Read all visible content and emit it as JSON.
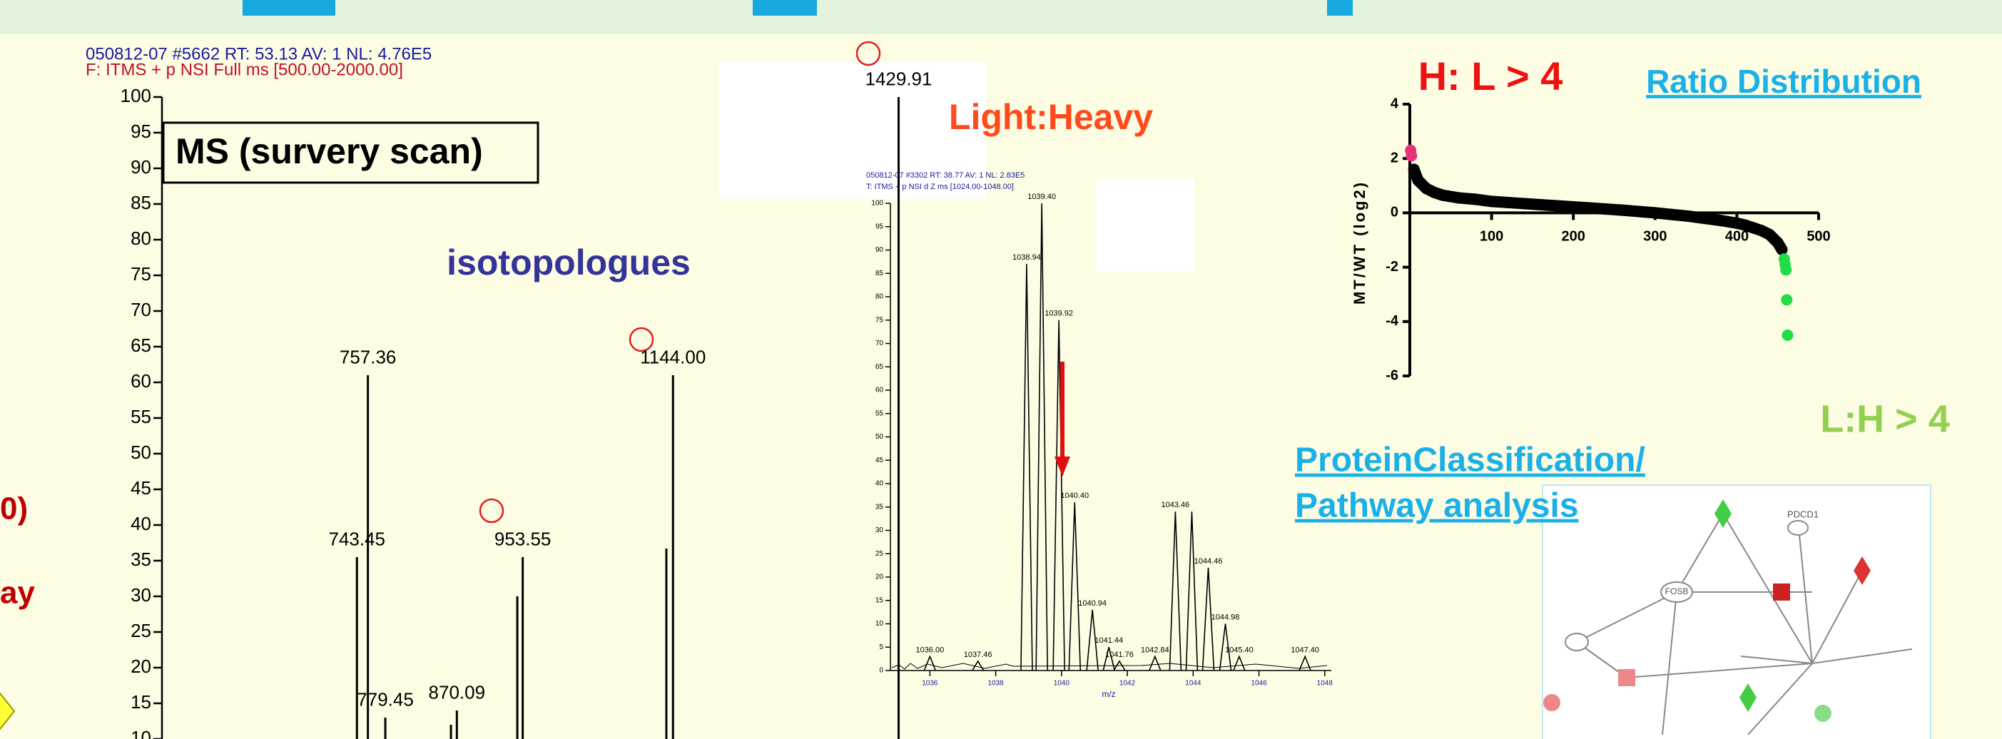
{
  "slide": {
    "left_fragments": [
      "0)",
      "ay"
    ],
    "isotopologues": "isotopologues",
    "light_heavy": "Light:Heavy",
    "hl": "H: L > 4",
    "lh": "L:H > 4",
    "ratio_link": "Ratio Distribution",
    "pathway": [
      "ProteinClassification/",
      "Pathway analysis"
    ],
    "network_labels": [
      "PDCD1",
      "FOSB"
    ]
  },
  "chart_data": [
    {
      "type": "spectrum",
      "title": "MS (survery scan)",
      "header": [
        "050812-07 #5662  RT: 53.13  AV: 1  NL: 4.76E5",
        "F: ITMS + p NSI Full ms [500.00-2000.00]"
      ],
      "x": [
        743.45,
        757.36,
        779.45,
        862.6,
        870.09,
        946.7,
        953.55,
        1135.6,
        1144.0,
        1429.91
      ],
      "x_labels": [
        "743.45",
        "757.36",
        "779.45",
        null,
        "870.09",
        null,
        "953.55",
        null,
        "1144.00",
        "1429.91"
      ],
      "values": [
        35.5,
        61,
        13,
        12,
        14,
        30,
        35.5,
        36.7,
        61,
        100
      ],
      "xlim": [
        500,
        2000
      ],
      "ylim": [
        10,
        100
      ],
      "yticks": [
        10,
        15,
        20,
        25,
        30,
        35,
        40,
        45,
        50,
        55,
        60,
        65,
        70,
        75,
        80,
        85,
        90,
        95,
        100
      ],
      "color": "#000000"
    },
    {
      "type": "spectrum",
      "header": [
        "050812-07 #3302  RT: 38.77  AV: 1  NL: 2.83E5",
        "T: ITMS + p NSI d Z ms [1024.00-1048.00]"
      ],
      "xlabel": "m/z",
      "x": [
        1036.0,
        1037.46,
        1038.94,
        1039.4,
        1039.92,
        1040.4,
        1040.94,
        1041.44,
        1041.76,
        1042.84,
        1043.46,
        1043.96,
        1044.46,
        1044.98,
        1045.4,
        1047.4
      ],
      "x_labels": [
        "1036.00",
        "1037.46",
        "1038.94",
        "1039.40",
        "1039.92",
        "1040.40",
        "1040.94",
        "1041.44",
        "1041.76",
        "1042.84",
        "1043.46",
        null,
        "1044.46",
        "1044.98",
        "1045.40",
        "1047.40"
      ],
      "values": [
        3,
        2,
        87,
        100,
        75,
        36,
        13,
        5,
        2,
        3,
        34,
        34,
        22,
        10,
        3,
        3
      ],
      "xlim": [
        1034.8,
        1048.2
      ],
      "xticks": [
        1036,
        1038,
        1040,
        1042,
        1044,
        1046,
        1048
      ],
      "ylim": [
        0,
        100
      ],
      "yticks": [
        0,
        5,
        10,
        15,
        20,
        25,
        30,
        35,
        40,
        45,
        50,
        55,
        60,
        65,
        70,
        75,
        80,
        85,
        90,
        95,
        100
      ],
      "color": "#000000"
    },
    {
      "type": "scatter",
      "ylabel": "MT/WT (log2)",
      "xlim": [
        0,
        500
      ],
      "xticks": [
        100,
        200,
        300,
        400,
        500
      ],
      "ylim": [
        -6,
        4
      ],
      "yticks": [
        -6,
        -4,
        -2,
        0,
        2,
        4
      ],
      "series": [
        {
          "color": "#000000",
          "x": [
            5,
            10,
            20,
            30,
            40,
            60,
            80,
            100,
            120,
            140,
            160,
            180,
            200,
            220,
            240,
            260,
            280,
            300,
            320,
            340,
            360,
            380,
            400,
            410,
            420,
            430,
            440,
            445,
            450,
            455
          ],
          "values": [
            1.6,
            1.2,
            0.9,
            0.75,
            0.65,
            0.55,
            0.5,
            0.42,
            0.38,
            0.34,
            0.3,
            0.26,
            0.22,
            0.18,
            0.14,
            0.1,
            0.05,
            0,
            -0.06,
            -0.12,
            -0.2,
            -0.28,
            -0.38,
            -0.45,
            -0.55,
            -0.65,
            -0.8,
            -0.95,
            -1.1,
            -1.35
          ]
        },
        {
          "color": "#e8327c",
          "x": [
            1,
            2
          ],
          "values": [
            2.3,
            2.1
          ]
        },
        {
          "color": "#22dd44",
          "x": [
            458,
            459,
            460,
            461,
            462
          ],
          "values": [
            -1.7,
            -1.9,
            -2.1,
            -3.2,
            -4.5
          ]
        }
      ]
    }
  ]
}
